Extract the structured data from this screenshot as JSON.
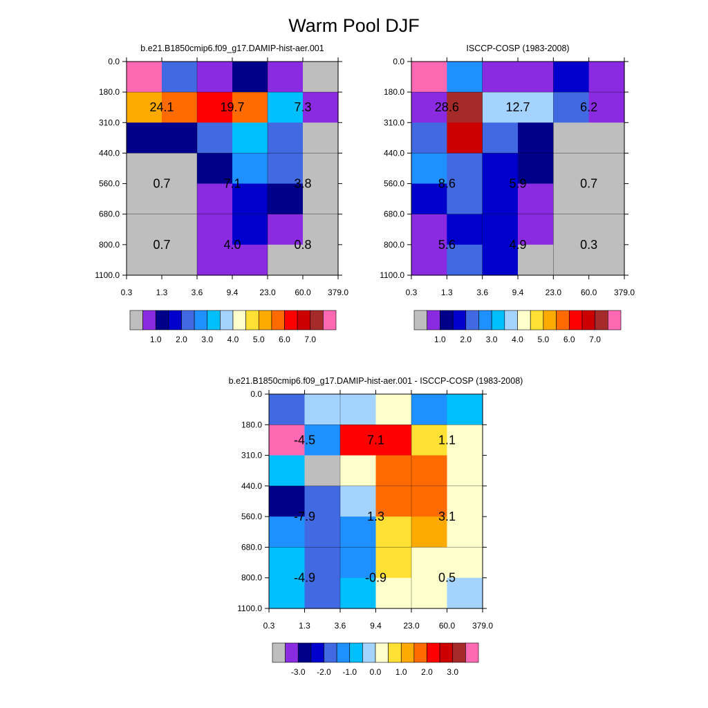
{
  "page": {
    "title": "Warm Pool DJF"
  },
  "colors": {
    "model_palette": [
      "#bebebe",
      "#8a2be2",
      "#00008b",
      "#0000cd",
      "#4169e1",
      "#1e90ff",
      "#00bfff",
      "#a4d3ff",
      "#ffffcc",
      "#ffe135",
      "#ffaa00",
      "#ff6b00",
      "#ff0000",
      "#cc0000",
      "#a52a2a",
      "#ff69b4"
    ],
    "diff_palette": [
      "#bebebe",
      "#8a2be2",
      "#00008b",
      "#0000cd",
      "#4169e1",
      "#1e90ff",
      "#00bfff",
      "#a4d3ff",
      "#ffffcc",
      "#ffe135",
      "#ffaa00",
      "#ff6b00",
      "#ff0000",
      "#cc0000",
      "#a52a2a",
      "#ff69b4"
    ]
  },
  "chart_data": [
    {
      "type": "heatmap",
      "title": "b.e21.B1850cmip6.f09_g17.DAMIP-hist-aer.001",
      "x_tick_labels": [
        "0.3",
        "1.3",
        "3.6",
        "9.4",
        "23.0",
        "60.0",
        "379.0"
      ],
      "y_tick_labels": [
        "0.0",
        "180.0",
        "310.0",
        "440.0",
        "560.0",
        "680.0",
        "800.0",
        "1100.0"
      ],
      "cell_color_index": [
        [
          15,
          4,
          1,
          2,
          1,
          0
        ],
        [
          10,
          11,
          12,
          11,
          6,
          1
        ],
        [
          2,
          2,
          4,
          6,
          4,
          0
        ],
        [
          0,
          0,
          2,
          5,
          4,
          0
        ],
        [
          0,
          0,
          1,
          3,
          2,
          0
        ],
        [
          0,
          0,
          1,
          3,
          1,
          0
        ],
        [
          0,
          0,
          1,
          1,
          0,
          0
        ]
      ],
      "annotations": [
        {
          "label": "24.1",
          "col_from": 0,
          "col_to": 2,
          "row_from": 1,
          "row_to": 2
        },
        {
          "label": "19.7",
          "col_from": 2,
          "col_to": 4,
          "row_from": 1,
          "row_to": 2
        },
        {
          "label": "7.3",
          "col_from": 4,
          "col_to": 6,
          "row_from": 1,
          "row_to": 2
        },
        {
          "label": "0.7",
          "col_from": 0,
          "col_to": 2,
          "row_from": 3,
          "row_to": 5
        },
        {
          "label": "7.1",
          "col_from": 2,
          "col_to": 4,
          "row_from": 3,
          "row_to": 5
        },
        {
          "label": "3.8",
          "col_from": 4,
          "col_to": 6,
          "row_from": 3,
          "row_to": 5
        },
        {
          "label": "0.7",
          "col_from": 0,
          "col_to": 2,
          "row_from": 5,
          "row_to": 7
        },
        {
          "label": "4.0",
          "col_from": 2,
          "col_to": 4,
          "row_from": 5,
          "row_to": 7
        },
        {
          "label": "0.8",
          "col_from": 4,
          "col_to": 6,
          "row_from": 5,
          "row_to": 7
        }
      ],
      "colorbar": {
        "palette": "model_palette",
        "labels": [
          {
            "text": "1.0",
            "boundary": 2
          },
          {
            "text": "2.0",
            "boundary": 4
          },
          {
            "text": "3.0",
            "boundary": 6
          },
          {
            "text": "4.0",
            "boundary": 8
          },
          {
            "text": "5.0",
            "boundary": 10
          },
          {
            "text": "6.0",
            "boundary": 12
          },
          {
            "text": "7.0",
            "boundary": 14
          }
        ]
      }
    },
    {
      "type": "heatmap",
      "title": "ISCCP-COSP (1983-2008)",
      "x_tick_labels": [
        "0.3",
        "1.3",
        "3.6",
        "9.4",
        "23.0",
        "60.0",
        "379.0"
      ],
      "y_tick_labels": [
        "0.0",
        "180.0",
        "310.0",
        "440.0",
        "560.0",
        "680.0",
        "800.0",
        "1100.0"
      ],
      "cell_color_index": [
        [
          15,
          5,
          1,
          1,
          3,
          1
        ],
        [
          1,
          14,
          7,
          7,
          4,
          1
        ],
        [
          4,
          13,
          4,
          2,
          0,
          0
        ],
        [
          5,
          4,
          3,
          2,
          0,
          0
        ],
        [
          3,
          4,
          3,
          1,
          0,
          0
        ],
        [
          1,
          3,
          3,
          1,
          0,
          0
        ],
        [
          1,
          4,
          3,
          0,
          0,
          0
        ]
      ],
      "annotations": [
        {
          "label": "28.6",
          "col_from": 0,
          "col_to": 2,
          "row_from": 1,
          "row_to": 2
        },
        {
          "label": "12.7",
          "col_from": 2,
          "col_to": 4,
          "row_from": 1,
          "row_to": 2
        },
        {
          "label": "6.2",
          "col_from": 4,
          "col_to": 6,
          "row_from": 1,
          "row_to": 2
        },
        {
          "label": "8.6",
          "col_from": 0,
          "col_to": 2,
          "row_from": 3,
          "row_to": 5
        },
        {
          "label": "5.9",
          "col_from": 2,
          "col_to": 4,
          "row_from": 3,
          "row_to": 5
        },
        {
          "label": "0.7",
          "col_from": 4,
          "col_to": 6,
          "row_from": 3,
          "row_to": 5
        },
        {
          "label": "5.6",
          "col_from": 0,
          "col_to": 2,
          "row_from": 5,
          "row_to": 7
        },
        {
          "label": "4.9",
          "col_from": 2,
          "col_to": 4,
          "row_from": 5,
          "row_to": 7
        },
        {
          "label": "0.3",
          "col_from": 4,
          "col_to": 6,
          "row_from": 5,
          "row_to": 7
        }
      ],
      "colorbar": {
        "palette": "model_palette",
        "labels": [
          {
            "text": "1.0",
            "boundary": 2
          },
          {
            "text": "2.0",
            "boundary": 4
          },
          {
            "text": "3.0",
            "boundary": 6
          },
          {
            "text": "4.0",
            "boundary": 8
          },
          {
            "text": "5.0",
            "boundary": 10
          },
          {
            "text": "6.0",
            "boundary": 12
          },
          {
            "text": "7.0",
            "boundary": 14
          }
        ]
      }
    },
    {
      "type": "heatmap",
      "title": "b.e21.B1850cmip6.f09_g17.DAMIP-hist-aer.001 - ISCCP-COSP (1983-2008)",
      "x_tick_labels": [
        "0.3",
        "1.3",
        "3.6",
        "9.4",
        "23.0",
        "60.0",
        "379.0"
      ],
      "y_tick_labels": [
        "0.0",
        "180.0",
        "310.0",
        "440.0",
        "560.0",
        "680.0",
        "800.0",
        "1100.0"
      ],
      "cell_color_index": [
        [
          4,
          7,
          7,
          8,
          5,
          6
        ],
        [
          15,
          5,
          12,
          12,
          9,
          8
        ],
        [
          6,
          0,
          8,
          11,
          11,
          8
        ],
        [
          2,
          4,
          7,
          11,
          11,
          8
        ],
        [
          5,
          4,
          5,
          9,
          10,
          8
        ],
        [
          6,
          4,
          5,
          9,
          8,
          8
        ],
        [
          6,
          4,
          6,
          8,
          8,
          7
        ]
      ],
      "annotations": [
        {
          "label": "-4.5",
          "col_from": 0,
          "col_to": 2,
          "row_from": 1,
          "row_to": 2
        },
        {
          "label": "7.1",
          "col_from": 2,
          "col_to": 4,
          "row_from": 1,
          "row_to": 2
        },
        {
          "label": "1.1",
          "col_from": 4,
          "col_to": 6,
          "row_from": 1,
          "row_to": 2
        },
        {
          "label": "-7.9",
          "col_from": 0,
          "col_to": 2,
          "row_from": 3,
          "row_to": 5
        },
        {
          "label": "1.3",
          "col_from": 2,
          "col_to": 4,
          "row_from": 3,
          "row_to": 5
        },
        {
          "label": "3.1",
          "col_from": 4,
          "col_to": 6,
          "row_from": 3,
          "row_to": 5
        },
        {
          "label": "-4.9",
          "col_from": 0,
          "col_to": 2,
          "row_from": 5,
          "row_to": 7
        },
        {
          "label": "-0.9",
          "col_from": 2,
          "col_to": 4,
          "row_from": 5,
          "row_to": 7
        },
        {
          "label": "0.5",
          "col_from": 4,
          "col_to": 6,
          "row_from": 5,
          "row_to": 7
        }
      ],
      "colorbar": {
        "palette": "diff_palette",
        "labels": [
          {
            "text": "-3.0",
            "boundary": 2
          },
          {
            "text": "-2.0",
            "boundary": 4
          },
          {
            "text": "-1.0",
            "boundary": 6
          },
          {
            "text": "0.0",
            "boundary": 8
          },
          {
            "text": "1.0",
            "boundary": 10
          },
          {
            "text": "2.0",
            "boundary": 12
          },
          {
            "text": "3.0",
            "boundary": 14
          }
        ]
      }
    }
  ]
}
